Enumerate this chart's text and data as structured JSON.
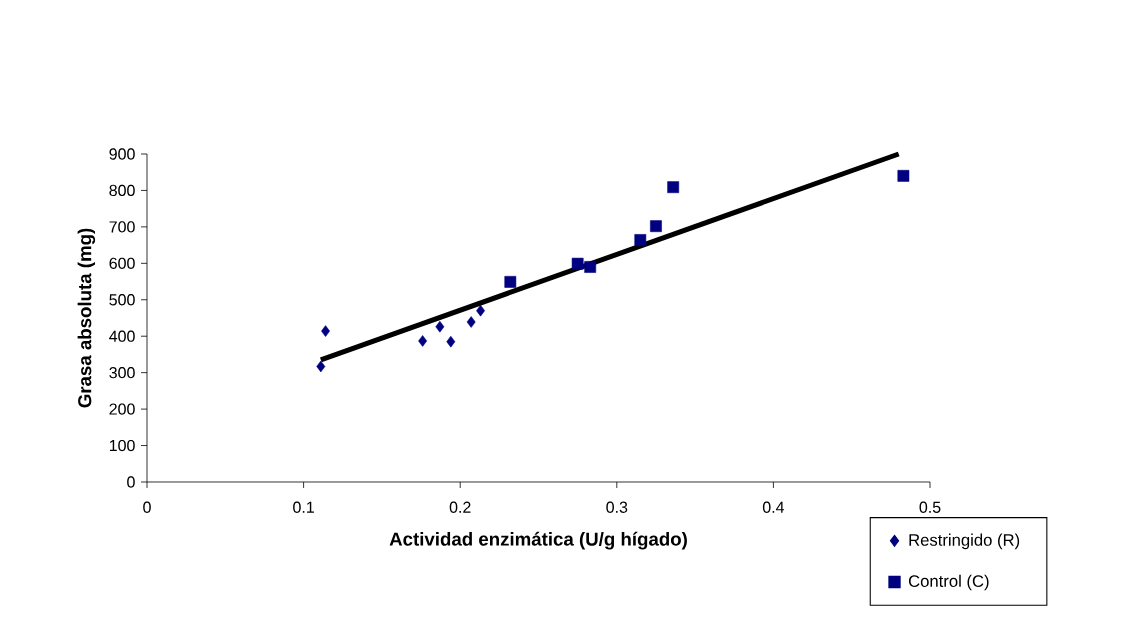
{
  "chart_data": {
    "type": "scatter",
    "xlabel": "Actividad enzimática (U/g hígado)",
    "ylabel": "Grasa absoluta (mg)",
    "xlim": [
      0,
      0.5
    ],
    "ylim": [
      0,
      900
    ],
    "xticks": [
      0,
      0.1,
      0.2,
      0.3,
      0.4,
      0.5
    ],
    "yticks": [
      0,
      100,
      200,
      300,
      400,
      500,
      600,
      700,
      800,
      900
    ],
    "legend": "bottom right",
    "grid": false,
    "series": [
      {
        "name": "Restringido (R)",
        "color": "#000080",
        "marker": "diamond",
        "x": [
          0.111,
          0.114,
          0.176,
          0.187,
          0.194,
          0.207,
          0.213
        ],
        "values": [
          317,
          414,
          387,
          426,
          385,
          439,
          470
        ]
      },
      {
        "name": "Control (C)",
        "color": "#000080",
        "marker": "square",
        "x": [
          0.232,
          0.275,
          0.283,
          0.315,
          0.325,
          0.336,
          0.483
        ],
        "values": [
          549,
          599,
          590,
          664,
          702,
          809,
          840
        ]
      },
      {
        "type": "line",
        "color": "#000000",
        "marker": "none",
        "line_style": "solid",
        "x": [
          0.111,
          0.48
        ],
        "values": [
          335,
          900
        ]
      }
    ]
  }
}
